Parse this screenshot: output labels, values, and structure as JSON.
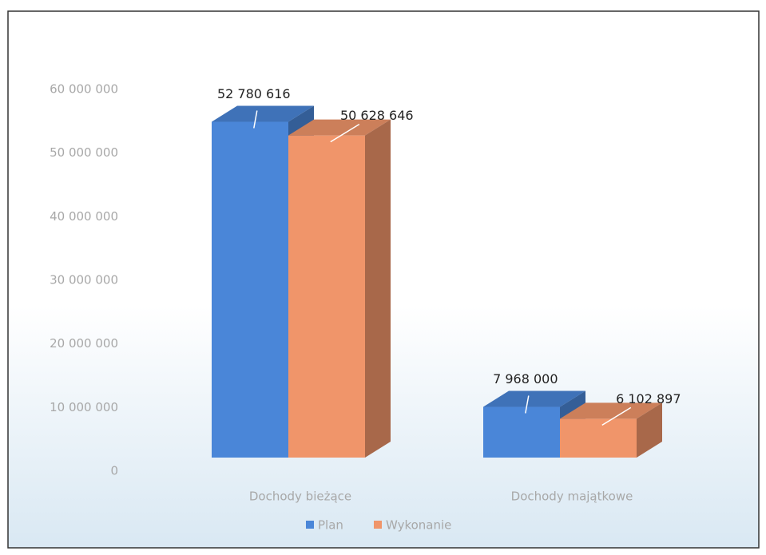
{
  "chart_data": {
    "type": "bar3d",
    "categories": [
      "Dochody bieżące",
      "Dochody majątkowe"
    ],
    "series": [
      {
        "name": "Plan",
        "color": "#4a86d8",
        "values": [
          52780616,
          7968000
        ],
        "value_labels": [
          "52 780 616",
          "7 968 000"
        ]
      },
      {
        "name": "Wykonanie",
        "color": "#f0956a",
        "values": [
          50628646,
          6102897
        ],
        "value_labels": [
          "50 628 646",
          "6 102 897"
        ]
      }
    ],
    "ylim": [
      0,
      60000000
    ],
    "yticks": [
      {
        "value": 0,
        "label": "0"
      },
      {
        "value": 10000000,
        "label": "10 000 000"
      },
      {
        "value": 20000000,
        "label": "20 000 000"
      },
      {
        "value": 30000000,
        "label": "30 000 000"
      },
      {
        "value": 40000000,
        "label": "40 000 000"
      },
      {
        "value": 50000000,
        "label": "50 000 000"
      },
      {
        "value": 60000000,
        "label": "60 000 000"
      }
    ],
    "grid": false,
    "legend": "bottom"
  }
}
